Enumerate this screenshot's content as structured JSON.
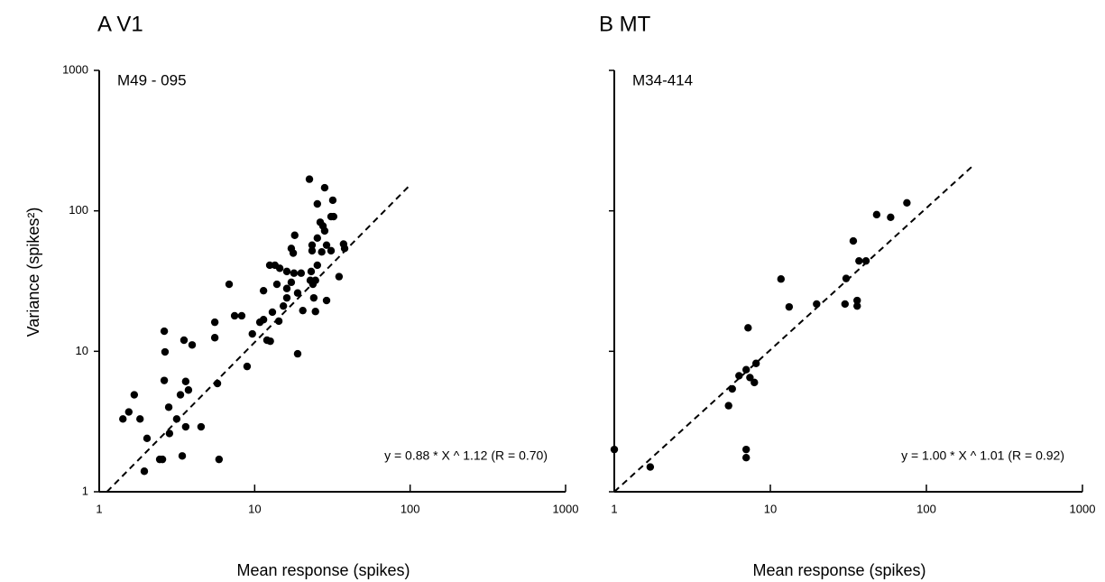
{
  "chart_data": [
    {
      "type": "scatter",
      "title": "A  V1",
      "subtitle": "M49 - 095",
      "x_label": "Mean response (spikes)",
      "y_label": "Variance (spikes²)",
      "annotation": "y = 0.88 * X ^ 1.12  (R = 0.70)",
      "log_x": true,
      "log_y": true,
      "color": "#000000",
      "fit": {
        "a": 0.88,
        "b": 1.12,
        "xrange": [
          1.12,
          100
        ]
      },
      "xlim": [
        1,
        1000
      ],
      "ylim": [
        1,
        1000
      ],
      "xticks": [
        1,
        10,
        100,
        1000
      ],
      "yticks": [
        1,
        10,
        100,
        1000
      ],
      "show_ytick_labels": true,
      "x": [
        1.42,
        1.55,
        1.68,
        1.83,
        2.03,
        1.95,
        2.45,
        2.55,
        2.62,
        2.62,
        2.65,
        2.8,
        2.83,
        3.15,
        3.33,
        3.51,
        3.42,
        3.6,
        3.6,
        3.75,
        3.96,
        4.52,
        5.54,
        5.54,
        5.76,
        5.9,
        6.85,
        7.43,
        8.25,
        8.94,
        9.66,
        10.8,
        11.4,
        11.4,
        12.5,
        12.0,
        12.6,
        13.5,
        13.0,
        15.3,
        14.3,
        14.5,
        13.9,
        16.1,
        16.1,
        16.1,
        17.2,
        17.2,
        17.9,
        18.1,
        17.7,
        18.9,
        18.9,
        20.4,
        19.9,
        22.5,
        23.4,
        23.4,
        23.1,
        23.7,
        24.0,
        24.6,
        24.6,
        22.8,
        25.3,
        25.3,
        25.3,
        27.5,
        27.0,
        26.4,
        28.2,
        28.2,
        29.0,
        29.0,
        31.0,
        31.0,
        32.2,
        31.8,
        34.9,
        37.9,
        37.3
      ],
      "values": [
        3.3,
        3.7,
        4.9,
        3.3,
        2.4,
        1.4,
        1.7,
        1.7,
        6.2,
        13.9,
        9.9,
        4.0,
        2.6,
        3.3,
        4.9,
        12.0,
        1.8,
        6.1,
        2.9,
        5.3,
        11.1,
        2.9,
        16.1,
        12.5,
        5.9,
        1.7,
        30,
        17.9,
        17.9,
        7.8,
        13.3,
        16.1,
        27,
        16.8,
        41,
        12.0,
        11.8,
        41,
        19,
        21,
        16.4,
        39,
        30,
        37,
        28,
        24,
        54,
        31,
        36,
        67,
        50,
        26,
        9.6,
        19.5,
        36,
        168,
        57,
        52,
        37,
        30,
        24,
        32,
        19.2,
        32,
        64,
        112,
        41,
        78,
        51,
        83,
        146,
        72,
        57,
        23,
        91,
        52,
        91,
        119,
        34,
        54,
        58
      ]
    },
    {
      "type": "scatter",
      "title": "B  MT",
      "subtitle": "M34-414",
      "x_label": "Mean response (spikes)",
      "annotation": "y = 1.00 * X ^ 1.01  (R = 0.92)",
      "log_x": true,
      "log_y": true,
      "color": "#000000",
      "fit": {
        "a": 1.0,
        "b": 1.01,
        "xrange": [
          1,
          200
        ]
      },
      "xlim": [
        1,
        1000
      ],
      "ylim": [
        1,
        1000
      ],
      "xticks": [
        1,
        10,
        100,
        1000
      ],
      "yticks": [
        1,
        10,
        100,
        1000
      ],
      "show_ytick_labels": false,
      "x": [
        1,
        1.7,
        5.4,
        5.7,
        6.3,
        7.0,
        7.2,
        7.4,
        7.9,
        8.1,
        7.0,
        7.0,
        11.7,
        13.2,
        19.8,
        30.6,
        30.1,
        34,
        36,
        36,
        37,
        41,
        48,
        59,
        75
      ],
      "values": [
        2.0,
        1.5,
        4.1,
        5.4,
        6.7,
        7.4,
        14.7,
        6.5,
        6.0,
        8.2,
        2.0,
        1.75,
        32.7,
        20.7,
        21.7,
        33,
        21.7,
        61,
        23,
        21,
        44,
        44,
        94,
        90,
        114
      ]
    }
  ]
}
